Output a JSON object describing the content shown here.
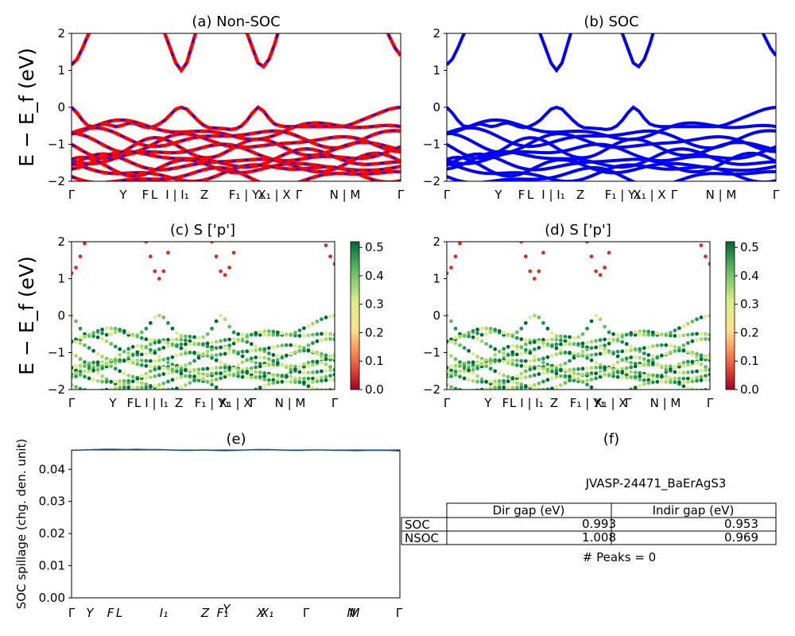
{
  "chart_data": [
    {
      "type": "line",
      "title": "(a) Non-SOC",
      "ylabel": "E − E_f (eV)",
      "ylim": [
        -2,
        2
      ],
      "yticks": [
        "−2",
        "−1",
        "0",
        "1",
        "2"
      ],
      "kpath_labels": [
        "Γ",
        "Y",
        "F",
        "L",
        "I | I₁",
        "Z",
        "F₁ | Y₁",
        "X₁ | X",
        "Γ",
        "N | M",
        "Γ"
      ],
      "series": [
        {
          "style": "red solid with blue dashed overlay",
          "band": [
            1.15,
            1.3,
            1.6,
            1.95,
            2.2,
            2.2,
            2.2,
            2.2,
            2.2,
            2.2,
            2.2,
            2.2,
            2.2,
            2.2,
            2.2,
            2.2,
            2.2,
            2.0,
            1.6,
            1.2,
            1.0,
            1.2,
            1.7,
            2.2,
            2.2,
            2.2,
            2.2,
            2.2,
            2.2,
            2.2,
            2.2,
            2.2,
            2.0,
            1.6,
            1.2,
            1.1,
            1.3,
            1.7,
            2.2,
            2.2,
            2.2,
            2.2,
            2.2,
            2.2,
            2.2,
            2.2,
            2.2,
            2.2,
            2.2,
            2.2,
            2.2,
            2.2,
            2.2,
            2.2,
            2.2,
            2.2,
            2.2,
            2.2,
            1.9,
            1.6,
            1.4
          ]
        },
        {
          "style": "red solid with blue dashed overlay",
          "band": [
            -0.0,
            -0.15,
            -0.35,
            -0.5,
            -0.52,
            -0.48,
            -0.45,
            -0.48,
            -0.52,
            -0.5,
            -0.45,
            -0.42,
            -0.46,
            -0.52,
            -0.55,
            -0.52,
            -0.45,
            -0.35,
            -0.2,
            -0.05,
            0.0,
            -0.05,
            -0.2,
            -0.35,
            -0.48,
            -0.55,
            -0.56,
            -0.57,
            -0.58,
            -0.6,
            -0.58,
            -0.5,
            -0.35,
            -0.15,
            0.0,
            -0.1,
            -0.3,
            -0.45,
            -0.5,
            -0.52,
            -0.52,
            -0.52,
            -0.52,
            -0.52,
            -0.52,
            -0.52,
            -0.52,
            -0.52,
            -0.52,
            -0.52,
            -0.5,
            -0.46,
            -0.4,
            -0.34,
            -0.28,
            -0.22,
            -0.16,
            -0.1,
            -0.05,
            -0.02,
            0.0
          ]
        }
      ]
    },
    {
      "type": "line",
      "title": "(b) SOC",
      "ylim": [
        -2,
        2
      ],
      "yticks": [
        "−2",
        "−1",
        "0",
        "1",
        "2"
      ],
      "kpath_labels": [
        "Γ",
        "Y",
        "F",
        "L",
        "I | I₁",
        "Z",
        "F₁ | Y₁",
        "X₁ | X",
        "Γ",
        "N | M",
        "Γ"
      ],
      "series": [
        {
          "style": "blue solid",
          "band": [
            1.15,
            1.3,
            1.6,
            1.95,
            2.2,
            2.2,
            2.2,
            2.2,
            2.2,
            2.2,
            2.2,
            2.2,
            2.2,
            2.2,
            2.2,
            2.2,
            2.2,
            2.0,
            1.6,
            1.2,
            1.0,
            1.2,
            1.7,
            2.2,
            2.2,
            2.2,
            2.2,
            2.2,
            2.2,
            2.2,
            2.2,
            2.2,
            2.0,
            1.6,
            1.2,
            1.1,
            1.3,
            1.7,
            2.2,
            2.2,
            2.2,
            2.2,
            2.2,
            2.2,
            2.2,
            2.2,
            2.2,
            2.2,
            2.2,
            2.2,
            2.2,
            2.2,
            2.2,
            2.2,
            2.2,
            2.2,
            2.2,
            2.2,
            1.9,
            1.6,
            1.4
          ]
        },
        {
          "style": "blue solid",
          "band": [
            -0.0,
            -0.15,
            -0.35,
            -0.5,
            -0.52,
            -0.48,
            -0.45,
            -0.48,
            -0.52,
            -0.5,
            -0.45,
            -0.42,
            -0.46,
            -0.52,
            -0.55,
            -0.52,
            -0.45,
            -0.35,
            -0.2,
            -0.05,
            0.0,
            -0.05,
            -0.2,
            -0.35,
            -0.48,
            -0.55,
            -0.56,
            -0.57,
            -0.58,
            -0.6,
            -0.58,
            -0.5,
            -0.35,
            -0.15,
            0.0,
            -0.1,
            -0.3,
            -0.45,
            -0.5,
            -0.52,
            -0.52,
            -0.52,
            -0.52,
            -0.52,
            -0.52,
            -0.52,
            -0.52,
            -0.52,
            -0.52,
            -0.52,
            -0.5,
            -0.46,
            -0.4,
            -0.34,
            -0.28,
            -0.22,
            -0.16,
            -0.1,
            -0.05,
            -0.02,
            0.0
          ]
        }
      ]
    },
    {
      "type": "scatter",
      "title": "(c)  S ['p']",
      "ylabel": "E − E_f (eV)",
      "ylim": [
        -2,
        2
      ],
      "yticks": [
        "−2",
        "−1",
        "0",
        "1",
        "2"
      ],
      "kpath_labels": [
        "Γ",
        "Y",
        "F",
        "L",
        "I | I₁",
        "Z",
        "F₁ | Y₁",
        "X₁ | X",
        "Γ",
        "N | M",
        "Γ"
      ],
      "colorbar": {
        "colormap": "RdYlGn",
        "range": [
          0.0,
          0.5
        ],
        "ticks": [
          "0.0",
          "0.1",
          "0.2",
          "0.3",
          "0.4",
          "0.5"
        ]
      }
    },
    {
      "type": "scatter",
      "title": "(d) S ['p']",
      "ylim": [
        -2,
        2
      ],
      "yticks": [
        "−2",
        "−1",
        "0",
        "1",
        "2"
      ],
      "kpath_labels": [
        "Γ",
        "Y",
        "F",
        "L",
        "I | I₁",
        "Z",
        "F₁ | Y₁",
        "X₁ | X",
        "Γ",
        "N | M",
        "Γ"
      ],
      "colorbar": {
        "colormap": "RdYlGn",
        "range": [
          0.0,
          0.5
        ],
        "ticks": [
          "0.0",
          "0.1",
          "0.2",
          "0.3",
          "0.4",
          "0.5"
        ]
      }
    },
    {
      "type": "line",
      "title": "(e)",
      "ylabel": "SOC spillage (chg. den. unit)",
      "ylim": [
        0.0,
        0.046
      ],
      "yticks": [
        "0.00",
        "0.01",
        "0.02",
        "0.03",
        "0.04"
      ],
      "xticks": [
        "Γ",
        "Y",
        "F",
        "L",
        "I₁",
        "Z",
        "F₁",
        "Y",
        "X",
        "X₁",
        "Γ",
        "N",
        "M",
        "Γ"
      ],
      "series": [
        {
          "values": [
            0.0459,
            0.046,
            0.0461,
            0.0462,
            0.0462,
            0.0461,
            0.0462,
            0.0461,
            0.0461,
            0.046,
            0.0459,
            0.0459,
            0.046,
            0.0459,
            0.0458,
            0.0459,
            0.046,
            0.0461,
            0.0461,
            0.046,
            0.0459,
            0.0459,
            0.046,
            0.046,
            0.0459,
            0.0459,
            0.0458,
            0.0459,
            0.0459,
            0.0459,
            0.0457
          ]
        }
      ]
    },
    {
      "type": "table",
      "title": "(f)",
      "subtitle": "JVASP-24471_BaErAgS3",
      "columns": [
        "Dir gap (eV)",
        "Indir gap (eV)"
      ],
      "rows": [
        {
          "label": "SOC",
          "values": [
            "0.993",
            "0.953"
          ]
        },
        {
          "label": "NSOC",
          "values": [
            "1.008",
            "0.969"
          ]
        }
      ],
      "footer": "# Peaks = 0"
    }
  ]
}
